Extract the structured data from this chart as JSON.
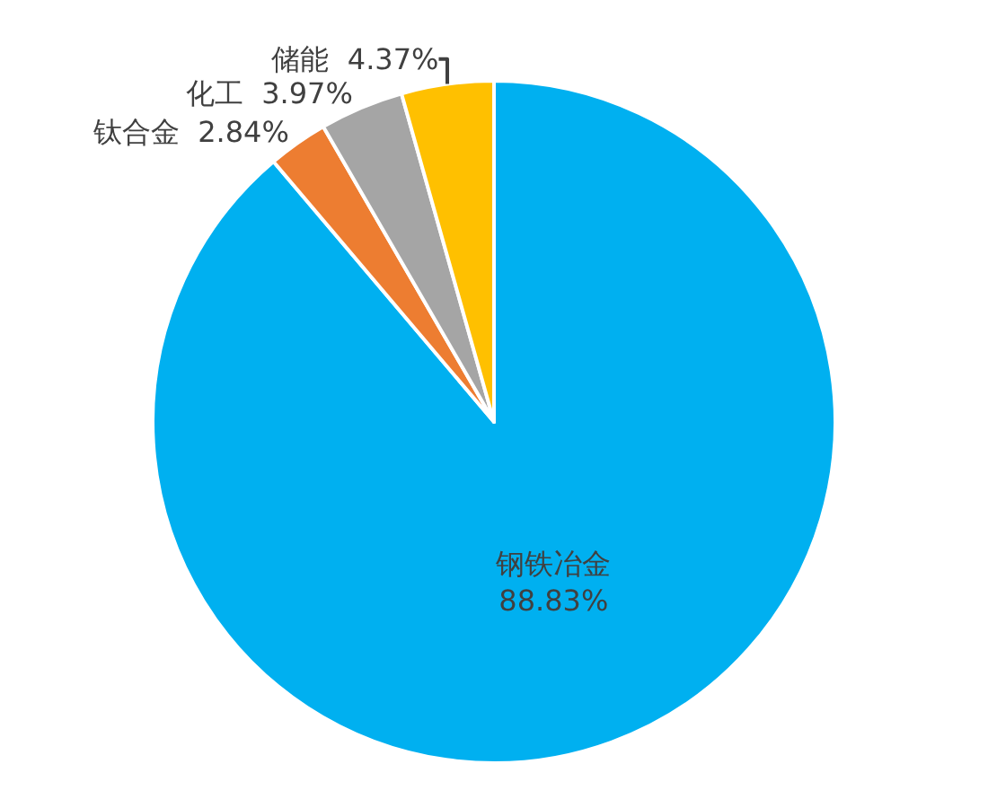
{
  "chart_data": {
    "type": "pie",
    "categories": [
      "钢铁冶金",
      "钛合金",
      "化工",
      "储能"
    ],
    "values": [
      88.83,
      2.84,
      3.97,
      4.37
    ],
    "colors": [
      "#00b0f0",
      "#ed7d31",
      "#a5a5a5",
      "#ffc000"
    ],
    "value_labels": [
      "88.83%",
      "2.84%",
      "3.97%",
      "4.37%"
    ],
    "legend": false
  }
}
